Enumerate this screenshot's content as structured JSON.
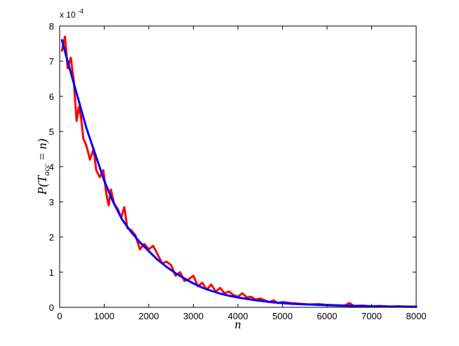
{
  "chart_data": {
    "type": "line",
    "xlabel": "n",
    "ylabel": "P(T_acc = n)",
    "y_exponent_label": "x 10",
    "y_exponent_power": "-4",
    "xlim": [
      0,
      8000
    ],
    "ylim": [
      0,
      8
    ],
    "x_ticks": [
      0,
      1000,
      2000,
      3000,
      4000,
      5000,
      6000,
      7000,
      8000
    ],
    "x_tick_labels": [
      "0",
      "1000",
      "2000",
      "3000",
      "4000",
      "5000",
      "6000",
      "7000",
      "8000"
    ],
    "y_ticks": [
      0,
      1,
      2,
      3,
      4,
      5,
      6,
      7,
      8
    ],
    "y_tick_labels": [
      "0",
      "1",
      "2",
      "3",
      "4",
      "5",
      "6",
      "7",
      "8"
    ],
    "grid": false,
    "series": [
      {
        "color": "#ff0000",
        "x": [
          50,
          120,
          180,
          250,
          320,
          380,
          430,
          480,
          530,
          600,
          680,
          760,
          820,
          900,
          980,
          1050,
          1100,
          1150,
          1220,
          1300,
          1380,
          1450,
          1520,
          1600,
          1700,
          1800,
          1900,
          2000,
          2100,
          2200,
          2300,
          2400,
          2500,
          2600,
          2700,
          2800,
          2900,
          3000,
          3100,
          3200,
          3300,
          3400,
          3500,
          3600,
          3700,
          3800,
          3900,
          4000,
          4100,
          4200,
          4300,
          4400,
          4500,
          4600,
          4700,
          4800,
          4900,
          5000,
          5200,
          5400,
          5600,
          5800,
          6000,
          6200,
          6400,
          6500,
          6600,
          6800,
          7000,
          7200,
          7400,
          7600,
          7800,
          8000
        ],
        "values": [
          7.3,
          7.7,
          6.8,
          7.1,
          6.4,
          5.3,
          5.7,
          5.4,
          4.8,
          4.6,
          4.2,
          4.5,
          3.9,
          3.7,
          3.9,
          3.2,
          2.9,
          3.35,
          2.95,
          2.8,
          2.55,
          2.85,
          2.25,
          2.2,
          2.05,
          1.65,
          1.8,
          1.65,
          1.75,
          1.5,
          1.25,
          1.3,
          1.2,
          0.9,
          1.0,
          0.75,
          0.8,
          0.9,
          0.6,
          0.7,
          0.5,
          0.65,
          0.45,
          0.55,
          0.4,
          0.45,
          0.35,
          0.3,
          0.4,
          0.28,
          0.3,
          0.22,
          0.25,
          0.2,
          0.15,
          0.2,
          0.12,
          0.15,
          0.12,
          0.1,
          0.08,
          0.09,
          0.07,
          0.06,
          0.05,
          0.12,
          0.04,
          0.05,
          0.03,
          0.04,
          0.02,
          0.03,
          0.02,
          0.02
        ]
      },
      {
        "color": "#0000ff",
        "x": [
          50,
          200,
          400,
          600,
          800,
          1000,
          1200,
          1400,
          1600,
          1800,
          2000,
          2200,
          2400,
          2600,
          2800,
          3000,
          3200,
          3400,
          3600,
          3800,
          4000,
          4200,
          4400,
          4600,
          4800,
          5000,
          5200,
          5400,
          5600,
          5800,
          6000,
          6200,
          6400,
          6600,
          6800,
          7000,
          7200,
          7400,
          7600,
          7800,
          8000
        ],
        "values": [
          7.6,
          6.9,
          6.0,
          5.1,
          4.35,
          3.6,
          3.0,
          2.5,
          2.15,
          1.85,
          1.6,
          1.35,
          1.15,
          0.97,
          0.82,
          0.68,
          0.56,
          0.47,
          0.39,
          0.33,
          0.28,
          0.24,
          0.2,
          0.17,
          0.14,
          0.12,
          0.1,
          0.09,
          0.08,
          0.07,
          0.06,
          0.05,
          0.045,
          0.04,
          0.035,
          0.03,
          0.025,
          0.022,
          0.02,
          0.018,
          0.015
        ]
      }
    ]
  }
}
